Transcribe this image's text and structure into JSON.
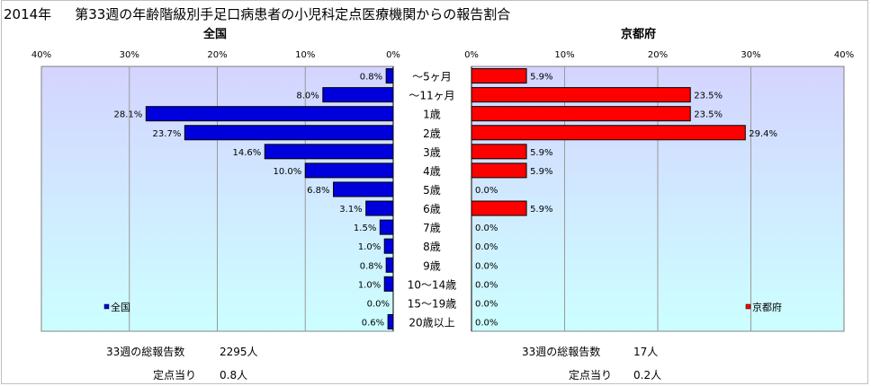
{
  "title": {
    "year": "2014年",
    "text": "第33週の年齢階級別手足口病患者の小児科定点医療機関からの報告割合"
  },
  "colors": {
    "national_bar": "#0000dd",
    "kyoto_bar": "#ff0000",
    "plot_bg_top": "#d4d4ff",
    "plot_bg_bottom": "#ccffff",
    "grid": "#9a9a9a"
  },
  "chart_data": [
    {
      "type": "bar",
      "orientation": "horizontal",
      "direction": "right-to-left",
      "title": "全国",
      "legend": "全国",
      "legend_position": "bottom-left",
      "xlim": [
        0,
        40
      ],
      "xticks": [
        "0%",
        "10%",
        "20%",
        "30%",
        "40%"
      ],
      "grid": true,
      "categories": [
        "～5ヶ月",
        "～11ヶ月",
        "1歳",
        "2歳",
        "3歳",
        "4歳",
        "5歳",
        "6歳",
        "7歳",
        "8歳",
        "9歳",
        "10～14歳",
        "15～19歳",
        "20歳以上"
      ],
      "values": [
        0.8,
        8.0,
        28.1,
        23.7,
        14.6,
        10.0,
        6.8,
        3.1,
        1.5,
        1.0,
        0.8,
        1.0,
        0.0,
        0.6
      ],
      "labels": [
        "0.8%",
        "8.0%",
        "28.1%",
        "23.7%",
        "14.6%",
        "10.0%",
        "6.8%",
        "3.1%",
        "1.5%",
        "1.0%",
        "0.8%",
        "1.0%",
        "0.0%",
        "0.6%"
      ]
    },
    {
      "type": "bar",
      "orientation": "horizontal",
      "direction": "left-to-right",
      "title": "京都府",
      "legend": "京都府",
      "legend_position": "bottom-right",
      "xlim": [
        0,
        40
      ],
      "xticks": [
        "0%",
        "10%",
        "20%",
        "30%",
        "40%"
      ],
      "grid": true,
      "categories": [
        "～5ヶ月",
        "～11ヶ月",
        "1歳",
        "2歳",
        "3歳",
        "4歳",
        "5歳",
        "6歳",
        "7歳",
        "8歳",
        "9歳",
        "10～14歳",
        "15～19歳",
        "20歳以上"
      ],
      "values": [
        5.9,
        23.5,
        23.5,
        29.4,
        5.9,
        5.9,
        0.0,
        5.9,
        0.0,
        0.0,
        0.0,
        0.0,
        0.0,
        0.0
      ],
      "labels": [
        "5.9%",
        "23.5%",
        "23.5%",
        "29.4%",
        "5.9%",
        "5.9%",
        "0.0%",
        "5.9%",
        "0.0%",
        "0.0%",
        "0.0%",
        "0.0%",
        "0.0%",
        "0.0%"
      ]
    }
  ],
  "footer": {
    "national": {
      "total_label": "33週の総報告数",
      "total_value": "2295人",
      "per_site_label": "定点当り",
      "per_site_value": "0.8人"
    },
    "kyoto": {
      "total_label": "33週の総報告数",
      "total_value": "17人",
      "per_site_label": "定点当り",
      "per_site_value": "0.2人"
    }
  }
}
